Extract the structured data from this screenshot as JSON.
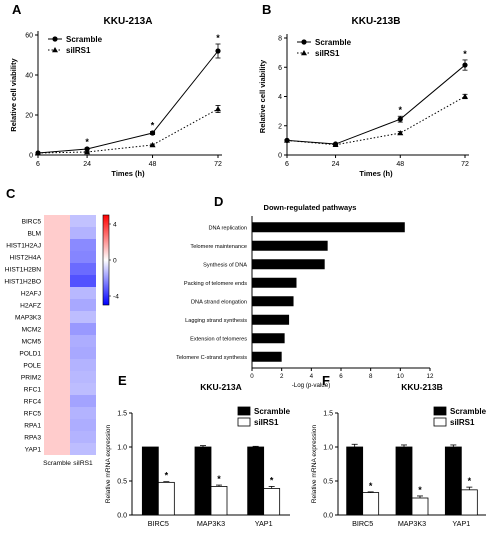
{
  "chart_data": [
    {
      "panel": "A",
      "type": "line",
      "title": "KKU-213A",
      "xlabel": "Times (h)",
      "ylabel": "Relative cell viability",
      "x": [
        6,
        24,
        48,
        72
      ],
      "xticks": [
        "6",
        "24",
        "48",
        "72"
      ],
      "yticks": [
        "0",
        "20",
        "40",
        "60"
      ],
      "ylim": [
        0,
        60
      ],
      "series": [
        {
          "name": "Scramble",
          "values": [
            1,
            3,
            11,
            52
          ],
          "errors": [
            0.3,
            0.5,
            0.8,
            3.5
          ],
          "color": "#000000",
          "marker": "circle",
          "dash": "solid"
        },
        {
          "name": "siIRS1",
          "values": [
            1,
            1.5,
            5,
            23
          ],
          "errors": [
            0.3,
            0.3,
            0.5,
            1.8
          ],
          "color": "#000000",
          "marker": "triangle",
          "dash": "dotted"
        }
      ],
      "significance": [
        {
          "x": 24,
          "label": "*"
        },
        {
          "x": 48,
          "label": "*"
        },
        {
          "x": 72,
          "label": "*"
        }
      ],
      "legend": "top-left"
    },
    {
      "panel": "B",
      "type": "line",
      "title": "KKU-213B",
      "xlabel": "Times (h)",
      "ylabel": "Relative cell viability",
      "x": [
        6,
        24,
        48,
        72
      ],
      "xticks": [
        "6",
        "24",
        "48",
        "72"
      ],
      "yticks": [
        "0",
        "2",
        "4",
        "6",
        "8"
      ],
      "ylim": [
        0,
        8
      ],
      "series": [
        {
          "name": "Scramble",
          "values": [
            1,
            0.75,
            2.45,
            6.15
          ],
          "errors": [
            0.05,
            0.05,
            0.2,
            0.35
          ],
          "color": "#000000",
          "marker": "circle",
          "dash": "solid"
        },
        {
          "name": "siIRS1",
          "values": [
            1,
            0.7,
            1.5,
            4.0
          ],
          "errors": [
            0.05,
            0.05,
            0.1,
            0.15
          ],
          "color": "#000000",
          "marker": "triangle",
          "dash": "dotted"
        }
      ],
      "significance": [
        {
          "x": 48,
          "label": "*"
        },
        {
          "x": 72,
          "label": "*"
        }
      ],
      "legend": "top-left"
    },
    {
      "panel": "C",
      "type": "heatmap",
      "columns": [
        "Scramble",
        "siIRS1"
      ],
      "rows": [
        "BIRC5",
        "BLM",
        "HIST1H2AJ",
        "HIST2H4A",
        "HIST1H2BN",
        "HIST1H2BO",
        "H2AFJ",
        "H2AFZ",
        "MAP3K3",
        "MCM2",
        "MCM5",
        "POLD1",
        "POLE",
        "PRIM2",
        "RFC1",
        "RFC4",
        "RFC5",
        "RPA1",
        "RPA3",
        "YAP1"
      ],
      "values": [
        [
          1,
          -1.2
        ],
        [
          1,
          -1.5
        ],
        [
          1,
          -2.3
        ],
        [
          1,
          -2.4
        ],
        [
          1,
          -2.9
        ],
        [
          1,
          -3.4
        ],
        [
          1,
          -1.4
        ],
        [
          1,
          -1.7
        ],
        [
          1,
          -1.3
        ],
        [
          1,
          -2.0
        ],
        [
          1,
          -1.6
        ],
        [
          1,
          -1.7
        ],
        [
          1,
          -1.5
        ],
        [
          1,
          -1.4
        ],
        [
          1,
          -1.3
        ],
        [
          1,
          -1.8
        ],
        [
          1,
          -1.5
        ],
        [
          1,
          -1.6
        ],
        [
          1,
          -1.5
        ],
        [
          1,
          -1.3
        ]
      ],
      "colorbar": {
        "min": -5,
        "max": 5,
        "ticks": [
          "4",
          "0",
          "-4"
        ],
        "low_color": "#0000ff",
        "mid_color": "#ffffff",
        "high_color": "#ff0000"
      }
    },
    {
      "panel": "D",
      "type": "bar",
      "orientation": "horizontal",
      "title": "Down-regulated pathways",
      "xlabel": "-Log (p-value)",
      "categories": [
        "DNA replication",
        "Telomere maintenance",
        "Synthesis of DNA",
        "Packing of telomere ends",
        "DNA strand elongation",
        "Lagging strand synthesis",
        "Extension of telomeres",
        "Telomere C-strand synthesis"
      ],
      "values": [
        10.3,
        5.1,
        4.9,
        3.0,
        2.8,
        2.5,
        2.2,
        2.0
      ],
      "xticks": [
        "0",
        "2",
        "4",
        "6",
        "8",
        "10",
        "12"
      ],
      "xlim": [
        0,
        12
      ],
      "color": "#000000"
    },
    {
      "panel": "E",
      "type": "bar",
      "title": "KKU-213A",
      "ylabel": "Relative mRNA expression",
      "categories": [
        "BIRC5",
        "MAP3K3",
        "YAP1"
      ],
      "yticks": [
        "0.0",
        "0.5",
        "1.0",
        "1.5"
      ],
      "ylim": [
        0,
        1.5
      ],
      "series": [
        {
          "name": "Scramble",
          "values": [
            1.0,
            1.0,
            1.0
          ],
          "errors": [
            0,
            0.02,
            0.01
          ],
          "fill": "#000000"
        },
        {
          "name": "siIRS1",
          "values": [
            0.48,
            0.42,
            0.39
          ],
          "errors": [
            0.01,
            0.02,
            0.03
          ],
          "fill": "#ffffff"
        }
      ],
      "significance": [
        "*",
        "*",
        "*"
      ],
      "legend": "top-right"
    },
    {
      "panel": "F",
      "type": "bar",
      "title": "KKU-213B",
      "ylabel": "Relative mRNA expression",
      "categories": [
        "BIRC5",
        "MAP3K3",
        "YAP1"
      ],
      "yticks": [
        "0.0",
        "0.5",
        "1.0",
        "1.5"
      ],
      "ylim": [
        0,
        1.5
      ],
      "series": [
        {
          "name": "Scramble",
          "values": [
            1.0,
            1.0,
            1.0
          ],
          "errors": [
            0.04,
            0.03,
            0.03
          ],
          "fill": "#000000"
        },
        {
          "name": "siIRS1",
          "values": [
            0.33,
            0.25,
            0.37
          ],
          "errors": [
            0.01,
            0.03,
            0.04
          ],
          "fill": "#ffffff"
        }
      ],
      "significance": [
        "*",
        "*",
        "*"
      ],
      "legend": "top-right"
    }
  ]
}
